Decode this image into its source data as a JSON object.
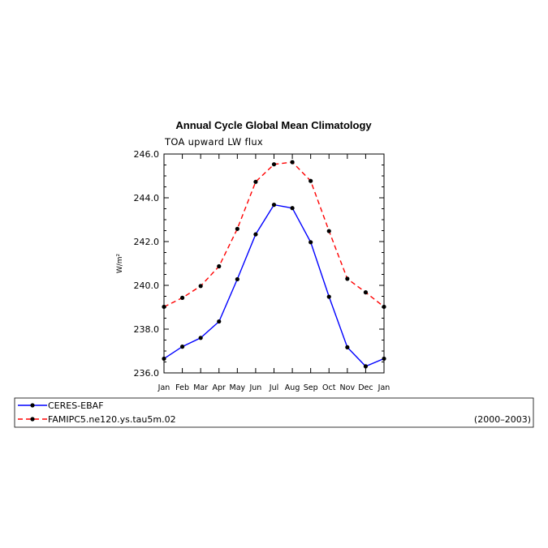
{
  "chart_data": {
    "type": "line",
    "title": "Annual Cycle Global Mean Climatology",
    "subtitle": "TOA upward LW flux",
    "ylabel": "W/m²",
    "xlabel": "",
    "categories": [
      "Jan",
      "Feb",
      "Mar",
      "Apr",
      "May",
      "Jun",
      "Jul",
      "Aug",
      "Sep",
      "Oct",
      "Nov",
      "Dec",
      "Jan"
    ],
    "ylim": [
      236.0,
      246.0
    ],
    "yticks": [
      "236.0",
      "238.0",
      "240.0",
      "242.0",
      "244.0",
      "246.0"
    ],
    "series": [
      {
        "name": "CERES-EBAF",
        "color": "#0000ff",
        "style": "solid",
        "values": [
          236.65,
          237.2,
          237.6,
          238.35,
          240.28,
          242.33,
          243.68,
          243.53,
          241.97,
          239.48,
          237.17,
          236.3,
          236.65
        ]
      },
      {
        "name": "FAMIPC5.ne120.ys.tau5m.02",
        "color": "#ff0000",
        "style": "dashed",
        "values": [
          239.02,
          239.43,
          239.97,
          240.87,
          242.58,
          244.73,
          245.53,
          245.63,
          244.77,
          242.48,
          240.3,
          239.68,
          239.02
        ]
      }
    ],
    "legend_note": "(2000–2003)",
    "grid": false,
    "legend_position": "bottom"
  }
}
